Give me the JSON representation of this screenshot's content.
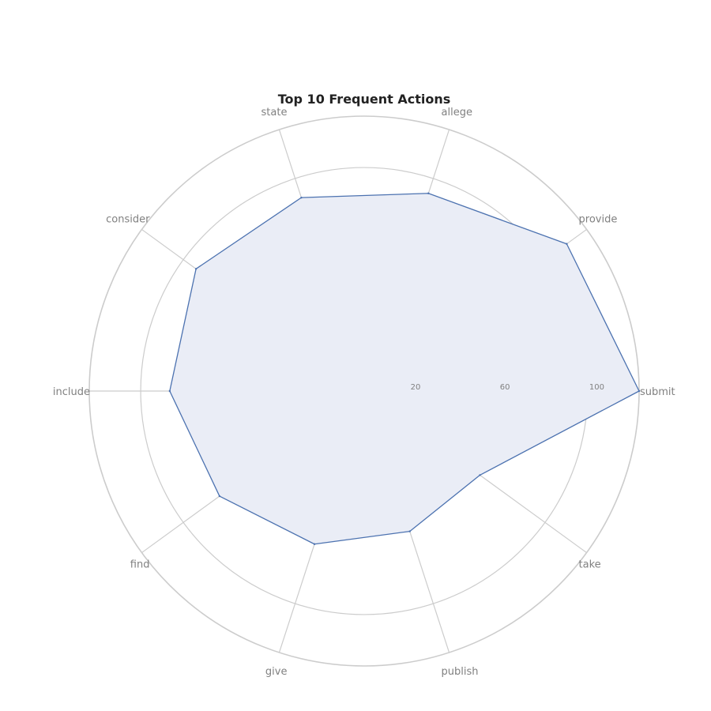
{
  "chart_data": {
    "type": "radar",
    "title": "Top 10 Frequent Actions",
    "categories": [
      "submit",
      "provide",
      "allege",
      "state",
      "consider",
      "include",
      "find",
      "give",
      "publish",
      "take"
    ],
    "series": [
      {
        "values": [
          123,
          112,
          93,
          91,
          93,
          87,
          80,
          72,
          66,
          64
        ]
      }
    ],
    "radial_ticks": [
      20,
      60,
      100
    ],
    "rlim": [
      0,
      123
    ],
    "grid": true,
    "colors": {
      "line": "#4c72b0",
      "fill": "#eaedf6",
      "grid": "#cccccc",
      "text": "#808080",
      "title": "#222222"
    }
  }
}
